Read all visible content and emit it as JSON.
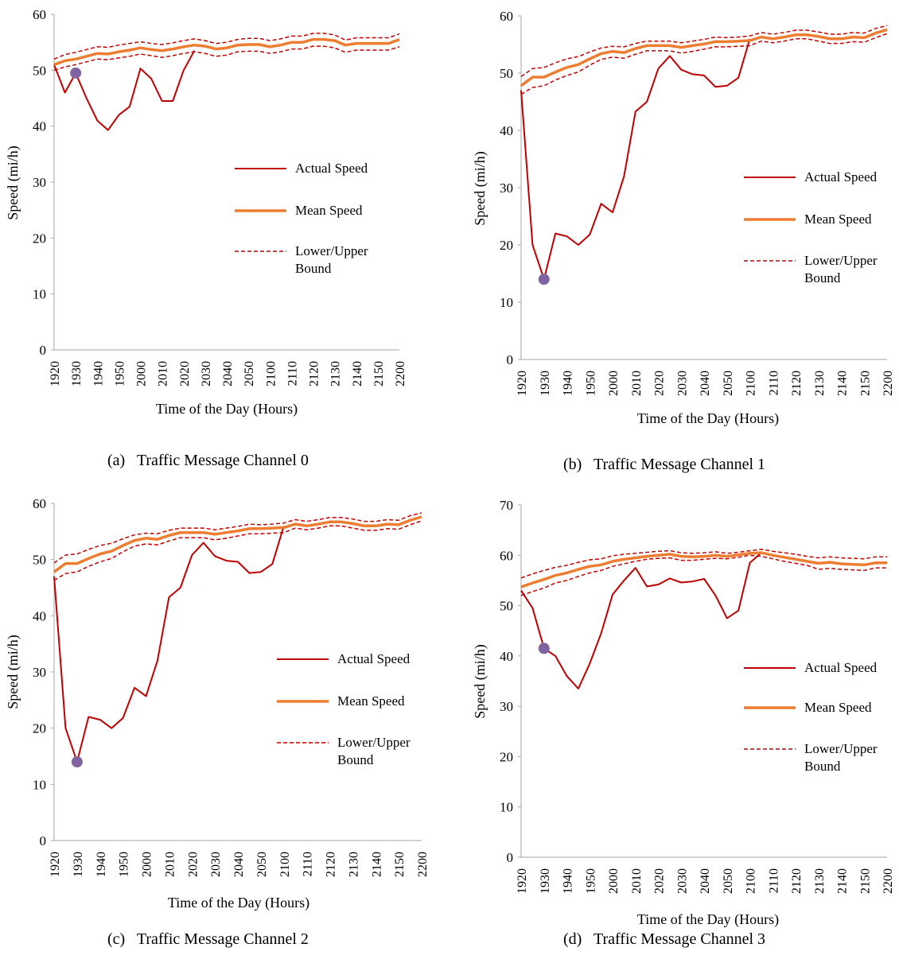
{
  "chart_data": [
    {
      "type": "line",
      "caption": "(a)   Traffic Message Channel 0",
      "xlabel": "Time of the Day (Hours)",
      "ylabel": "Speed (mi/h)",
      "categories": [
        "1920",
        null,
        "1930",
        null,
        "1940",
        null,
        "1950",
        null,
        "2000",
        null,
        "2010",
        null,
        "2020",
        null,
        "2030",
        null,
        "2040",
        null,
        "2050",
        null,
        "2100",
        null,
        "2110",
        null,
        "2120",
        null,
        "2130",
        null,
        "2140",
        null,
        "2150",
        null,
        "2200"
      ],
      "ylim": [
        0,
        60
      ],
      "yticks": [
        0,
        10,
        20,
        30,
        40,
        50,
        60
      ],
      "series": [
        {
          "name": "Actual Speed",
          "color": "#c00000",
          "line_style": "solid",
          "linewidth": 2,
          "values": [
            51,
            46,
            49.5,
            45,
            41,
            39.3,
            42,
            43.5,
            50.3,
            48.5,
            44.5,
            44.5,
            50,
            53.5,
            null,
            null,
            null,
            null,
            null,
            null,
            null,
            null,
            null,
            null,
            null,
            null,
            null,
            null,
            null,
            null,
            null,
            null,
            null
          ]
        },
        {
          "name": "Mean Speed",
          "color": "#ed7d31",
          "line_style": "solid",
          "linewidth": 3.5,
          "values": [
            51,
            51.7,
            52,
            52.5,
            53,
            52.9,
            53.3,
            53.6,
            54,
            53.7,
            53.5,
            53.8,
            54.2,
            54.5,
            54.3,
            53.8,
            54,
            54.5,
            54.6,
            54.6,
            54.2,
            54.5,
            55,
            55,
            55.5,
            55.5,
            55.3,
            54.5,
            54.8,
            54.8,
            54.8,
            54.8,
            55.5
          ]
        },
        {
          "name": "Lower/Upper Bound",
          "color": "#c00000",
          "line_style": "dashed",
          "linewidth": 1.5,
          "values": [
            50,
            50.6,
            51,
            51.5,
            52,
            51.9,
            52.2,
            52.5,
            52.9,
            52.6,
            52.3,
            52.6,
            53,
            53.3,
            53,
            52.5,
            52.7,
            53.3,
            53.4,
            53.4,
            53,
            53.3,
            53.8,
            53.8,
            54.3,
            54.3,
            54,
            53.2,
            53.6,
            53.6,
            53.6,
            53.6,
            54.2
          ]
        },
        {
          "color": "#c00000",
          "line_style": "dashed",
          "linewidth": 1.5,
          "values": [
            52,
            52.8,
            53.2,
            53.7,
            54.2,
            54.1,
            54.5,
            54.8,
            55.1,
            54.8,
            54.6,
            54.9,
            55.3,
            55.6,
            55.3,
            54.8,
            55,
            55.5,
            55.7,
            55.7,
            55.3,
            55.6,
            56.1,
            56.1,
            56.6,
            56.6,
            56.3,
            55.4,
            55.8,
            55.8,
            55.8,
            55.8,
            56.5
          ]
        },
        {
          "color": "#8064a2",
          "line_style": "point",
          "values": [
            null,
            null,
            49.5,
            null,
            null,
            null,
            null,
            null,
            null,
            null,
            null,
            null,
            null,
            null,
            null,
            null,
            null,
            null,
            null,
            null,
            null,
            null,
            null,
            null,
            null,
            null,
            null,
            null,
            null,
            null,
            null,
            null,
            null
          ]
        }
      ]
    },
    {
      "type": "line",
      "caption": "(b)   Traffic Message Channel 1",
      "xlabel": "Time of the Day (Hours)",
      "ylabel": "Speed (mi/h)",
      "categories": [
        "1920",
        null,
        "1930",
        null,
        "1940",
        null,
        "1950",
        null,
        "2000",
        null,
        "2010",
        null,
        "2020",
        null,
        "2030",
        null,
        "2040",
        null,
        "2050",
        null,
        "2100",
        null,
        "2110",
        null,
        "2120",
        null,
        "2130",
        null,
        "2140",
        null,
        "2150",
        null,
        "2200"
      ],
      "ylim": [
        0,
        60
      ],
      "yticks": [
        0,
        10,
        20,
        30,
        40,
        50,
        60
      ],
      "series": [
        {
          "name": "Actual Speed",
          "color": "#c00000",
          "line_style": "solid",
          "linewidth": 2,
          "values": [
            47,
            20,
            14,
            22,
            21.5,
            20,
            21.8,
            27.2,
            25.7,
            32,
            43.3,
            45,
            50.8,
            53,
            50.6,
            49.8,
            49.6,
            47.6,
            47.8,
            49.2,
            56,
            null,
            null,
            null,
            null,
            null,
            null,
            null,
            null,
            null,
            null,
            null,
            null
          ]
        },
        {
          "name": "Mean Speed",
          "color": "#ed7d31",
          "line_style": "solid",
          "linewidth": 3.5,
          "values": [
            47.8,
            49.3,
            49.3,
            50.2,
            51,
            51.5,
            52.5,
            53.4,
            53.8,
            53.6,
            54.3,
            54.8,
            54.8,
            54.8,
            54.5,
            54.8,
            55.1,
            55.5,
            55.5,
            55.6,
            55.7,
            56.3,
            56,
            56.3,
            56.7,
            56.7,
            56.4,
            56,
            56,
            56.3,
            56.2,
            57,
            57.6
          ]
        },
        {
          "name": "Lower/Upper Bound",
          "color": "#c00000",
          "line_style": "dashed",
          "linewidth": 1.5,
          "values": [
            46.3,
            47.5,
            47.8,
            48.8,
            49.6,
            50.2,
            51.4,
            52.4,
            52.8,
            52.6,
            53.3,
            53.9,
            53.9,
            53.9,
            53.5,
            53.8,
            54.2,
            54.6,
            54.6,
            54.7,
            54.8,
            55.6,
            55.3,
            55.6,
            56,
            56,
            55.6,
            55.2,
            55.2,
            55.5,
            55.4,
            56.2,
            56.9
          ]
        },
        {
          "color": "#c00000",
          "line_style": "dashed",
          "linewidth": 1.5,
          "values": [
            49.4,
            50.8,
            51,
            51.8,
            52.5,
            52.9,
            53.7,
            54.4,
            54.7,
            54.6,
            55.2,
            55.6,
            55.6,
            55.6,
            55.3,
            55.6,
            55.9,
            56.3,
            56.2,
            56.3,
            56.5,
            57.1,
            56.8,
            57.1,
            57.5,
            57.5,
            57.2,
            56.8,
            56.8,
            57.1,
            57,
            57.8,
            58.3
          ]
        },
        {
          "color": "#8064a2",
          "line_style": "point",
          "values": [
            null,
            null,
            14,
            null,
            null,
            null,
            null,
            null,
            null,
            null,
            null,
            null,
            null,
            null,
            null,
            null,
            null,
            null,
            null,
            null,
            null,
            null,
            null,
            null,
            null,
            null,
            null,
            null,
            null,
            null,
            null,
            null,
            null
          ]
        }
      ]
    },
    {
      "type": "line",
      "caption": "(c)   Traffic Message Channel 2",
      "xlabel": "Time of the Day (Hours)",
      "ylabel": "Speed (mi/h)",
      "categories": [
        "1920",
        null,
        "1930",
        null,
        "1940",
        null,
        "1950",
        null,
        "2000",
        null,
        "2010",
        null,
        "2020",
        null,
        "2030",
        null,
        "2040",
        null,
        "2050",
        null,
        "2100",
        null,
        "2110",
        null,
        "2120",
        null,
        "2130",
        null,
        "2140",
        null,
        "2150",
        null,
        "2200"
      ],
      "ylim": [
        0,
        60
      ],
      "yticks": [
        0,
        10,
        20,
        30,
        40,
        50,
        60
      ],
      "series": [
        {
          "name": "Actual Speed",
          "color": "#c00000",
          "line_style": "solid",
          "linewidth": 2,
          "values": [
            47,
            20,
            14,
            22,
            21.5,
            20,
            21.8,
            27.2,
            25.7,
            32,
            43.3,
            45,
            50.8,
            53,
            50.6,
            49.8,
            49.6,
            47.6,
            47.8,
            49.2,
            56,
            null,
            null,
            null,
            null,
            null,
            null,
            null,
            null,
            null,
            null,
            null,
            null
          ]
        },
        {
          "name": "Mean Speed",
          "color": "#ed7d31",
          "line_style": "solid",
          "linewidth": 3.5,
          "values": [
            47.8,
            49.3,
            49.3,
            50.2,
            51,
            51.5,
            52.5,
            53.4,
            53.8,
            53.6,
            54.3,
            54.8,
            54.8,
            54.8,
            54.5,
            54.8,
            55.1,
            55.5,
            55.5,
            55.6,
            55.7,
            56.3,
            56,
            56.3,
            56.7,
            56.7,
            56.4,
            56,
            56,
            56.3,
            56.2,
            57,
            57.6
          ]
        },
        {
          "name": "Lower/Upper Bound",
          "color": "#c00000",
          "line_style": "dashed",
          "linewidth": 1.5,
          "values": [
            46.3,
            47.5,
            47.8,
            48.8,
            49.6,
            50.2,
            51.4,
            52.4,
            52.8,
            52.6,
            53.3,
            53.9,
            53.9,
            53.9,
            53.5,
            53.8,
            54.2,
            54.6,
            54.6,
            54.7,
            54.8,
            55.6,
            55.3,
            55.6,
            56,
            56,
            55.6,
            55.2,
            55.2,
            55.5,
            55.4,
            56.2,
            56.9
          ]
        },
        {
          "color": "#c00000",
          "line_style": "dashed",
          "linewidth": 1.5,
          "values": [
            49.4,
            50.8,
            51,
            51.8,
            52.5,
            52.9,
            53.7,
            54.4,
            54.7,
            54.6,
            55.2,
            55.6,
            55.6,
            55.6,
            55.3,
            55.6,
            55.9,
            56.3,
            56.2,
            56.3,
            56.5,
            57.1,
            56.8,
            57.1,
            57.5,
            57.5,
            57.2,
            56.8,
            56.8,
            57.1,
            57,
            57.8,
            58.3
          ]
        },
        {
          "color": "#8064a2",
          "line_style": "point",
          "values": [
            null,
            null,
            14,
            null,
            null,
            null,
            null,
            null,
            null,
            null,
            null,
            null,
            null,
            null,
            null,
            null,
            null,
            null,
            null,
            null,
            null,
            null,
            null,
            null,
            null,
            null,
            null,
            null,
            null,
            null,
            null,
            null,
            null
          ]
        }
      ]
    },
    {
      "type": "line",
      "caption": "(d)   Traffic Message Channel 3",
      "xlabel": "Time of the Day (Hours)",
      "ylabel": "Speed (mi/h)",
      "categories": [
        "1920",
        null,
        "1930",
        null,
        "1940",
        null,
        "1950",
        null,
        "2000",
        null,
        "2010",
        null,
        "2020",
        null,
        "2030",
        null,
        "2040",
        null,
        "2050",
        null,
        "2100",
        null,
        "2110",
        null,
        "2120",
        null,
        "2130",
        null,
        "2140",
        null,
        "2150",
        null,
        "2200"
      ],
      "ylim": [
        0,
        70
      ],
      "yticks": [
        0,
        10,
        20,
        30,
        40,
        50,
        60,
        70
      ],
      "series": [
        {
          "name": "Actual Speed",
          "color": "#c00000",
          "line_style": "solid",
          "linewidth": 2,
          "values": [
            53,
            49.5,
            41.5,
            40,
            36,
            33.5,
            38.5,
            44.5,
            52.2,
            55,
            57.5,
            53.8,
            54.2,
            55.4,
            54.6,
            54.8,
            55.3,
            52,
            47.5,
            49,
            58.5,
            60.5,
            null,
            null,
            null,
            null,
            null,
            null,
            null,
            null,
            null,
            null,
            null
          ]
        },
        {
          "name": "Mean Speed",
          "color": "#ed7d31",
          "line_style": "solid",
          "linewidth": 3.5,
          "values": [
            53.7,
            54.5,
            55.2,
            56,
            56.5,
            57.2,
            57.8,
            58.1,
            58.8,
            59.2,
            59.5,
            59.8,
            60,
            60.2,
            59.8,
            59.7,
            59.8,
            60,
            59.8,
            60.1,
            60.4,
            60.5,
            60,
            59.6,
            59.2,
            58.8,
            58.4,
            58.6,
            58.3,
            58.2,
            58.1,
            58.5,
            58.5
          ]
        },
        {
          "name": "Lower/Upper Bound",
          "color": "#c00000",
          "line_style": "dashed",
          "linewidth": 1.5,
          "values": [
            52,
            52.8,
            53.5,
            54.5,
            55,
            55.8,
            56.5,
            57,
            57.8,
            58.3,
            58.8,
            59.2,
            59.4,
            59.5,
            59,
            59,
            59.2,
            59.4,
            59.3,
            59.6,
            60,
            59.8,
            59.3,
            58.8,
            58.4,
            58,
            57.2,
            57.4,
            57.2,
            57.1,
            57,
            57.5,
            57.5
          ]
        },
        {
          "color": "#c00000",
          "line_style": "dashed",
          "linewidth": 1.5,
          "values": [
            55.5,
            56.3,
            57,
            57.6,
            58,
            58.6,
            59.1,
            59.3,
            59.9,
            60.2,
            60.4,
            60.6,
            60.8,
            60.9,
            60.5,
            60.4,
            60.5,
            60.7,
            60.4,
            60.6,
            60.9,
            61.2,
            60.8,
            60.5,
            60.2,
            59.8,
            59.5,
            59.7,
            59.5,
            59.4,
            59.3,
            59.7,
            59.7
          ]
        },
        {
          "color": "#8064a2",
          "line_style": "point",
          "values": [
            null,
            null,
            41.5,
            null,
            null,
            null,
            null,
            null,
            null,
            null,
            null,
            null,
            null,
            null,
            null,
            null,
            null,
            null,
            null,
            null,
            null,
            null,
            null,
            null,
            null,
            null,
            null,
            null,
            null,
            null,
            null,
            null,
            null
          ]
        }
      ]
    }
  ]
}
